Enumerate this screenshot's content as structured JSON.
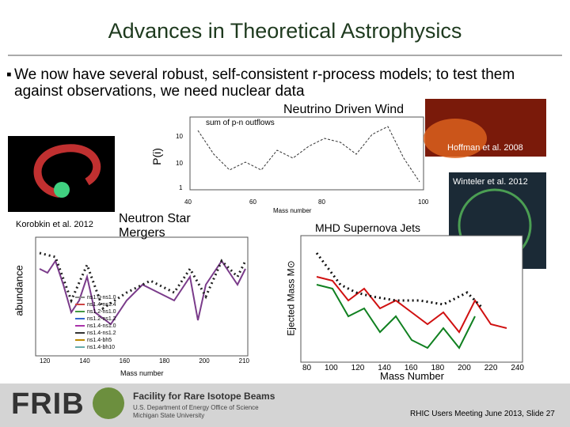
{
  "title": "Advances in Theoretical Astrophysics",
  "bullet": "We now have several robust, self-consistent  r-process models; to test them against observations, we need nuclear data",
  "panels": {
    "neutrino_wind": {
      "label": "Neutrino Driven Wind",
      "credit": "Hoffman et al. 2008",
      "credit2": "Winteler et al. 2012",
      "legend": "sum of p-n outflows",
      "x_label": "Mass number",
      "y_label": "P(i)",
      "x_ticks": [
        "40",
        "60",
        "80",
        "100"
      ],
      "y_ticks": [
        "1",
        "10",
        "10"
      ]
    },
    "mergers": {
      "label": "Neutron Star Mergers",
      "credit": "Korobkin et al. 2012",
      "x_label": "Mass number",
      "y_label": "abundance",
      "x_ticks": [
        "120",
        "140",
        "160",
        "180",
        "200",
        "210"
      ],
      "legend": [
        "ns1.0-ns1.0",
        "ns1.4-ns1.4",
        "ns1.2-ns1.0",
        "ns1.2-ns1.2",
        "ns1.4-ns1.0",
        "ns1.4-ns1.2",
        "ns1.4-bh5",
        "ns1.4-bh10"
      ]
    },
    "mhd": {
      "label": "MHD Supernova Jets",
      "x_label": "Mass Number",
      "y_label": "Ejected Mass M⊙",
      "x_ticks": [
        "80",
        "100",
        "120",
        "140",
        "160",
        "180",
        "200",
        "220",
        "240"
      ]
    }
  },
  "footer": {
    "logo": "FRIB",
    "org": "Facility for Rare Isotope Beams",
    "sub1": "U.S. Department of Energy Office of Science",
    "sub2": "Michigan State University",
    "slide": "RHIC Users Meeting June 2013, Slide 27"
  }
}
